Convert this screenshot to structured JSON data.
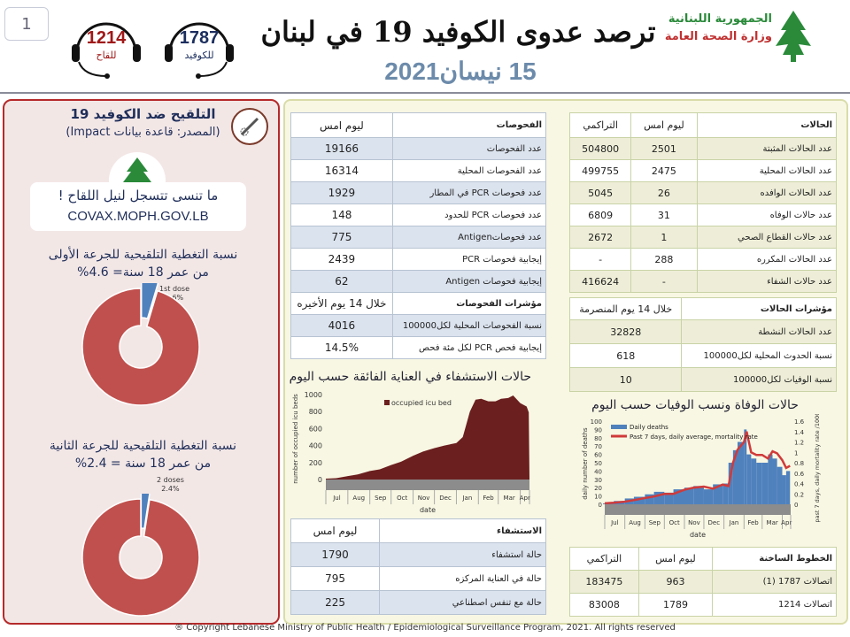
{
  "page_number": "1",
  "header": {
    "title": "ترصد عدوى الكوفيد 19 في لبنان",
    "date": "15 نيسان2021",
    "hotlines": [
      {
        "number": "1214",
        "label": "للقاح",
        "color": "#a01818"
      },
      {
        "number": "1787",
        "label": "للكوفيد",
        "color": "#1c2e5e"
      }
    ],
    "logo": {
      "line1": "الجمهورية اللبنانية",
      "line2": "وزارة الصحة العامة"
    }
  },
  "vaccination": {
    "title": "التلقيح ضد الكوفيد 19",
    "source": "(المصدر: قاعدة بيانات Impact)",
    "slogan": "ما تنسى تتسجل لنيل اللقاح !",
    "url": "COVAX.MOPH.GOV.LB",
    "dose1": {
      "title": "نسبة التغطية التلقيحية للجرعة الأولى",
      "subtitle": "من عمر 18 سنة= 4.6%",
      "label": "1st dose",
      "pct_label": "4.6%",
      "percent": 4.6
    },
    "dose2": {
      "title": "نسبة التغطية التلقيحية للجرعة الثانية",
      "subtitle": "من عمر 18 سنة = 2.4%",
      "label": "2 doses",
      "pct_label": "2.4%",
      "percent": 2.4
    },
    "colors": {
      "covered": "#4f81bd",
      "uncovered": "#c0504d"
    }
  },
  "tests": {
    "header": [
      "الفحوصات",
      "ليوم امس"
    ],
    "rows": [
      [
        "عدد الفحوصات",
        "19166"
      ],
      [
        "عدد الفحوصات المحلية",
        "16314"
      ],
      [
        "عدد فحوصات PCR في المطار",
        "1929"
      ],
      [
        "عدد فحوصات PCR للحدود",
        "148"
      ],
      [
        "عدد فحوصاتAntigen",
        "775"
      ],
      [
        "إيجابية فحوصات PCR",
        "2439"
      ],
      [
        "إيجابية فحوصات Antigen",
        "62"
      ]
    ],
    "ind_header": [
      "مؤشرات الفحوصات",
      "خلال 14 يوم الأخيره"
    ],
    "ind_rows": [
      [
        "نسبة الفحوصات المحلية لكل100000",
        "4016"
      ],
      [
        "إيجابية فحص PCR لكل مئة فحص",
        "14.5%"
      ]
    ]
  },
  "cases": {
    "header": [
      "الحالات",
      "ليوم امس",
      "التراكمي"
    ],
    "rows": [
      [
        "عدد الحالات المثبتة",
        "2501",
        "504800"
      ],
      [
        "عدد الحالات المحلية",
        "2475",
        "499755"
      ],
      [
        "عدد الحالات الوافده",
        "26",
        "5045"
      ],
      [
        "عدد حالات الوفاه",
        "31",
        "6809"
      ],
      [
        "عدد حالات القطاع الصحي",
        "1",
        "2672"
      ],
      [
        "عدد الحالات المكرره",
        "288",
        "-"
      ],
      [
        "عدد حالات الشفاء",
        "-",
        "416624"
      ]
    ],
    "ind_header": [
      "مؤشرات الحالات",
      "خلال 14 يوم المنصرمة"
    ],
    "ind_rows": [
      [
        "عدد الحالات النشطة",
        "32828"
      ],
      [
        "نسبة الحدوث المحلية لكل100000",
        "618"
      ],
      [
        "نسبة الوفيات لكل100000",
        "10"
      ]
    ]
  },
  "hospital": {
    "header": [
      "الاستشفاء",
      "ليوم امس"
    ],
    "rows": [
      [
        "حالة استشفاء",
        "1790"
      ],
      [
        "حالة في العناية المركزه",
        "795"
      ],
      [
        "حالة مع تنفس اصطناعي",
        "225"
      ]
    ]
  },
  "hotlines_table": {
    "header": [
      "الخطوط الساخنة",
      "ليوم امس",
      "التراكمي"
    ],
    "rows": [
      [
        "اتصالات 1787 (1)",
        "963",
        "183475"
      ],
      [
        "اتصالات 1214",
        "1789",
        "83008"
      ]
    ]
  },
  "footer": "® Copyright Lebanese Ministry of Public Health / Epidemiological Surveillance Program, 2021. All rights reserved",
  "chart_data": [
    {
      "type": "area",
      "title": "حالات الاستشفاء في العناية الفائقة حسب اليوم",
      "ylabel": "number of occupied icu beds",
      "xlabel": "date",
      "ylim": [
        0,
        1000
      ],
      "yticks": [
        0,
        200,
        400,
        600,
        800,
        1000
      ],
      "legend": "occupied icu bed",
      "legend_position": "top-left",
      "color": "#6b1f1f",
      "months": [
        "Jul",
        "Aug",
        "Sep",
        "Oct",
        "Nov",
        "Dec",
        "Jan",
        "Feb",
        "Mar",
        "Apr"
      ],
      "x": [
        "2020-07-01",
        "2020-07-15",
        "2020-08-01",
        "2020-08-15",
        "2020-09-01",
        "2020-09-15",
        "2020-10-01",
        "2020-10-15",
        "2020-11-01",
        "2020-11-15",
        "2020-12-01",
        "2020-12-15",
        "2021-01-01",
        "2021-01-10",
        "2021-01-20",
        "2021-01-28",
        "2021-02-05",
        "2021-02-15",
        "2021-02-25",
        "2021-03-05",
        "2021-03-15",
        "2021-03-22",
        "2021-04-01",
        "2021-04-10",
        "2021-04-13"
      ],
      "y": [
        10,
        15,
        40,
        60,
        100,
        120,
        170,
        210,
        280,
        330,
        370,
        400,
        430,
        500,
        800,
        940,
        950,
        920,
        920,
        950,
        960,
        990,
        900,
        860,
        790
      ]
    },
    {
      "type": "bar",
      "title": "حالات الوفاة ونسب الوفيات حسب اليوم",
      "xlabel": "date",
      "ylabel": "daily number of deaths",
      "y2label": "past 7 days, daily mortality rate /100000",
      "ylim": [
        0,
        100
      ],
      "y2lim": [
        0,
        1.6
      ],
      "legend_position": "top-left",
      "months": [
        "Jul",
        "Aug",
        "Sep",
        "Oct",
        "Nov",
        "Dec",
        "Jan",
        "Feb",
        "Mar",
        "Apr"
      ],
      "x": [
        "2020-07-01",
        "2020-07-15",
        "2020-08-01",
        "2020-08-15",
        "2020-09-01",
        "2020-09-15",
        "2020-10-01",
        "2020-10-15",
        "2020-11-01",
        "2020-11-15",
        "2020-12-01",
        "2020-12-15",
        "2020-12-30",
        "2021-01-08",
        "2021-01-15",
        "2021-01-22",
        "2021-02-01",
        "2021-02-05",
        "2021-02-12",
        "2021-02-20",
        "2021-03-01",
        "2021-03-10",
        "2021-03-17",
        "2021-03-24",
        "2021-04-01",
        "2021-04-07",
        "2021-04-13"
      ],
      "series": [
        {
          "name": "Daily deaths",
          "color": "#4f81bd",
          "values": [
            1,
            2,
            4,
            7,
            9,
            12,
            15,
            14,
            18,
            20,
            22,
            18,
            24,
            25,
            50,
            65,
            75,
            90,
            60,
            55,
            50,
            50,
            60,
            55,
            45,
            35,
            40
          ]
        },
        {
          "name": "Past 7 days, daily average, mortality rate",
          "color": "#d03a3a",
          "axis": "right",
          "values": [
            0.02,
            0.03,
            0.05,
            0.08,
            0.12,
            0.15,
            0.2,
            0.2,
            0.28,
            0.32,
            0.34,
            0.3,
            0.38,
            0.35,
            0.8,
            1.05,
            1.2,
            1.4,
            1.0,
            0.95,
            0.95,
            0.88,
            1.02,
            0.98,
            0.85,
            0.7,
            0.74
          ]
        }
      ]
    }
  ]
}
